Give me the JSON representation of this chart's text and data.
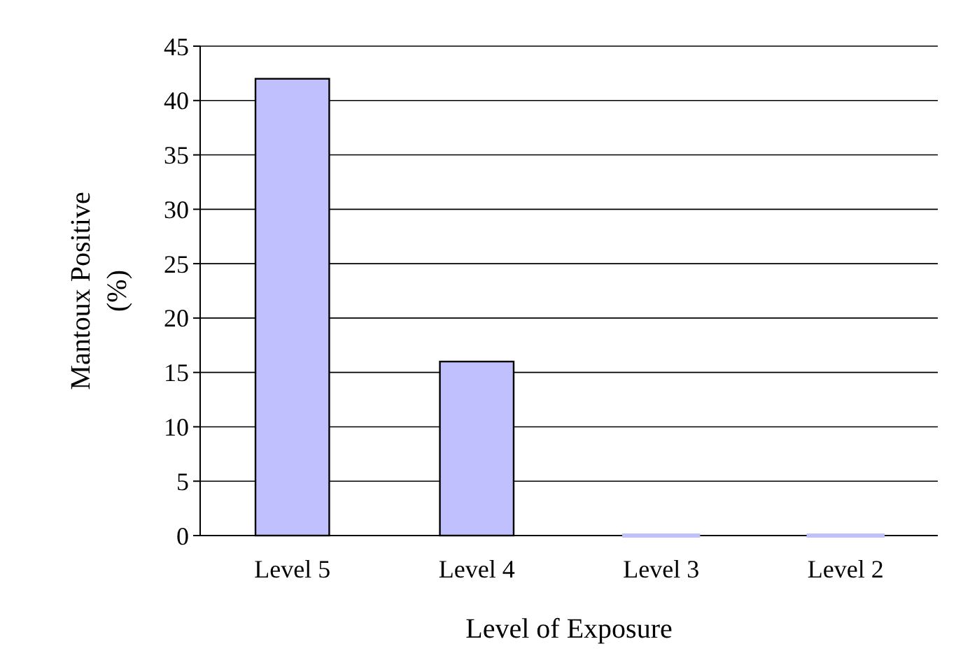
{
  "chart_data": {
    "type": "bar",
    "xlabel": "Level of Exposure",
    "ylabel": "Mantoux Positive (%)",
    "categories": [
      "Level 5",
      "Level 4",
      "Level 3",
      "Level 2"
    ],
    "values": [
      42,
      16,
      0,
      0
    ],
    "color": "#c0c0ff",
    "ylim": [
      0,
      45
    ],
    "yticks": [
      0,
      5,
      10,
      15,
      20,
      25,
      30,
      35,
      40,
      45
    ],
    "grid": "y"
  }
}
